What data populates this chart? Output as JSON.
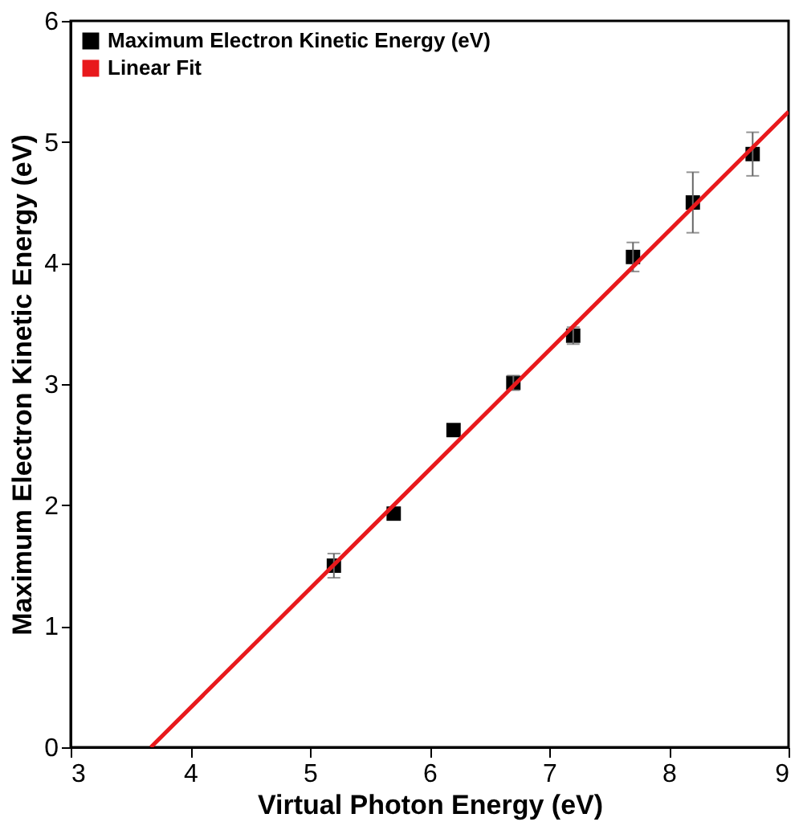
{
  "chart_data": {
    "type": "scatter",
    "xlabel": "Virtual Photon Energy (eV)",
    "ylabel": "Maximum Electron Kinetic Energy (eV)",
    "xlim": [
      3,
      9
    ],
    "xticks": [
      3,
      4,
      5,
      6,
      7,
      8,
      9
    ],
    "ylim": [
      0,
      6
    ],
    "yticks": [
      0,
      1,
      2,
      3,
      4,
      5,
      6
    ],
    "legend": "top left",
    "grid": false,
    "series": [
      {
        "name": "Maximum Electron Kinetic Energy (eV)",
        "marker": "square",
        "color": "#000000",
        "x": [
          5.2,
          5.7,
          6.2,
          6.7,
          7.2,
          7.7,
          8.2,
          8.7
        ],
        "values": [
          1.5,
          1.93,
          2.62,
          3.01,
          3.4,
          4.05,
          4.5,
          4.9
        ],
        "errors": [
          0.1,
          null,
          null,
          0.06,
          0.07,
          0.12,
          0.25,
          0.18
        ]
      },
      {
        "name": "Linear Fit",
        "type": "line",
        "color": "#e8191c",
        "x": [
          3.67,
          9
        ],
        "values": [
          0,
          5.25
        ],
        "line_style": "solid"
      }
    ]
  }
}
